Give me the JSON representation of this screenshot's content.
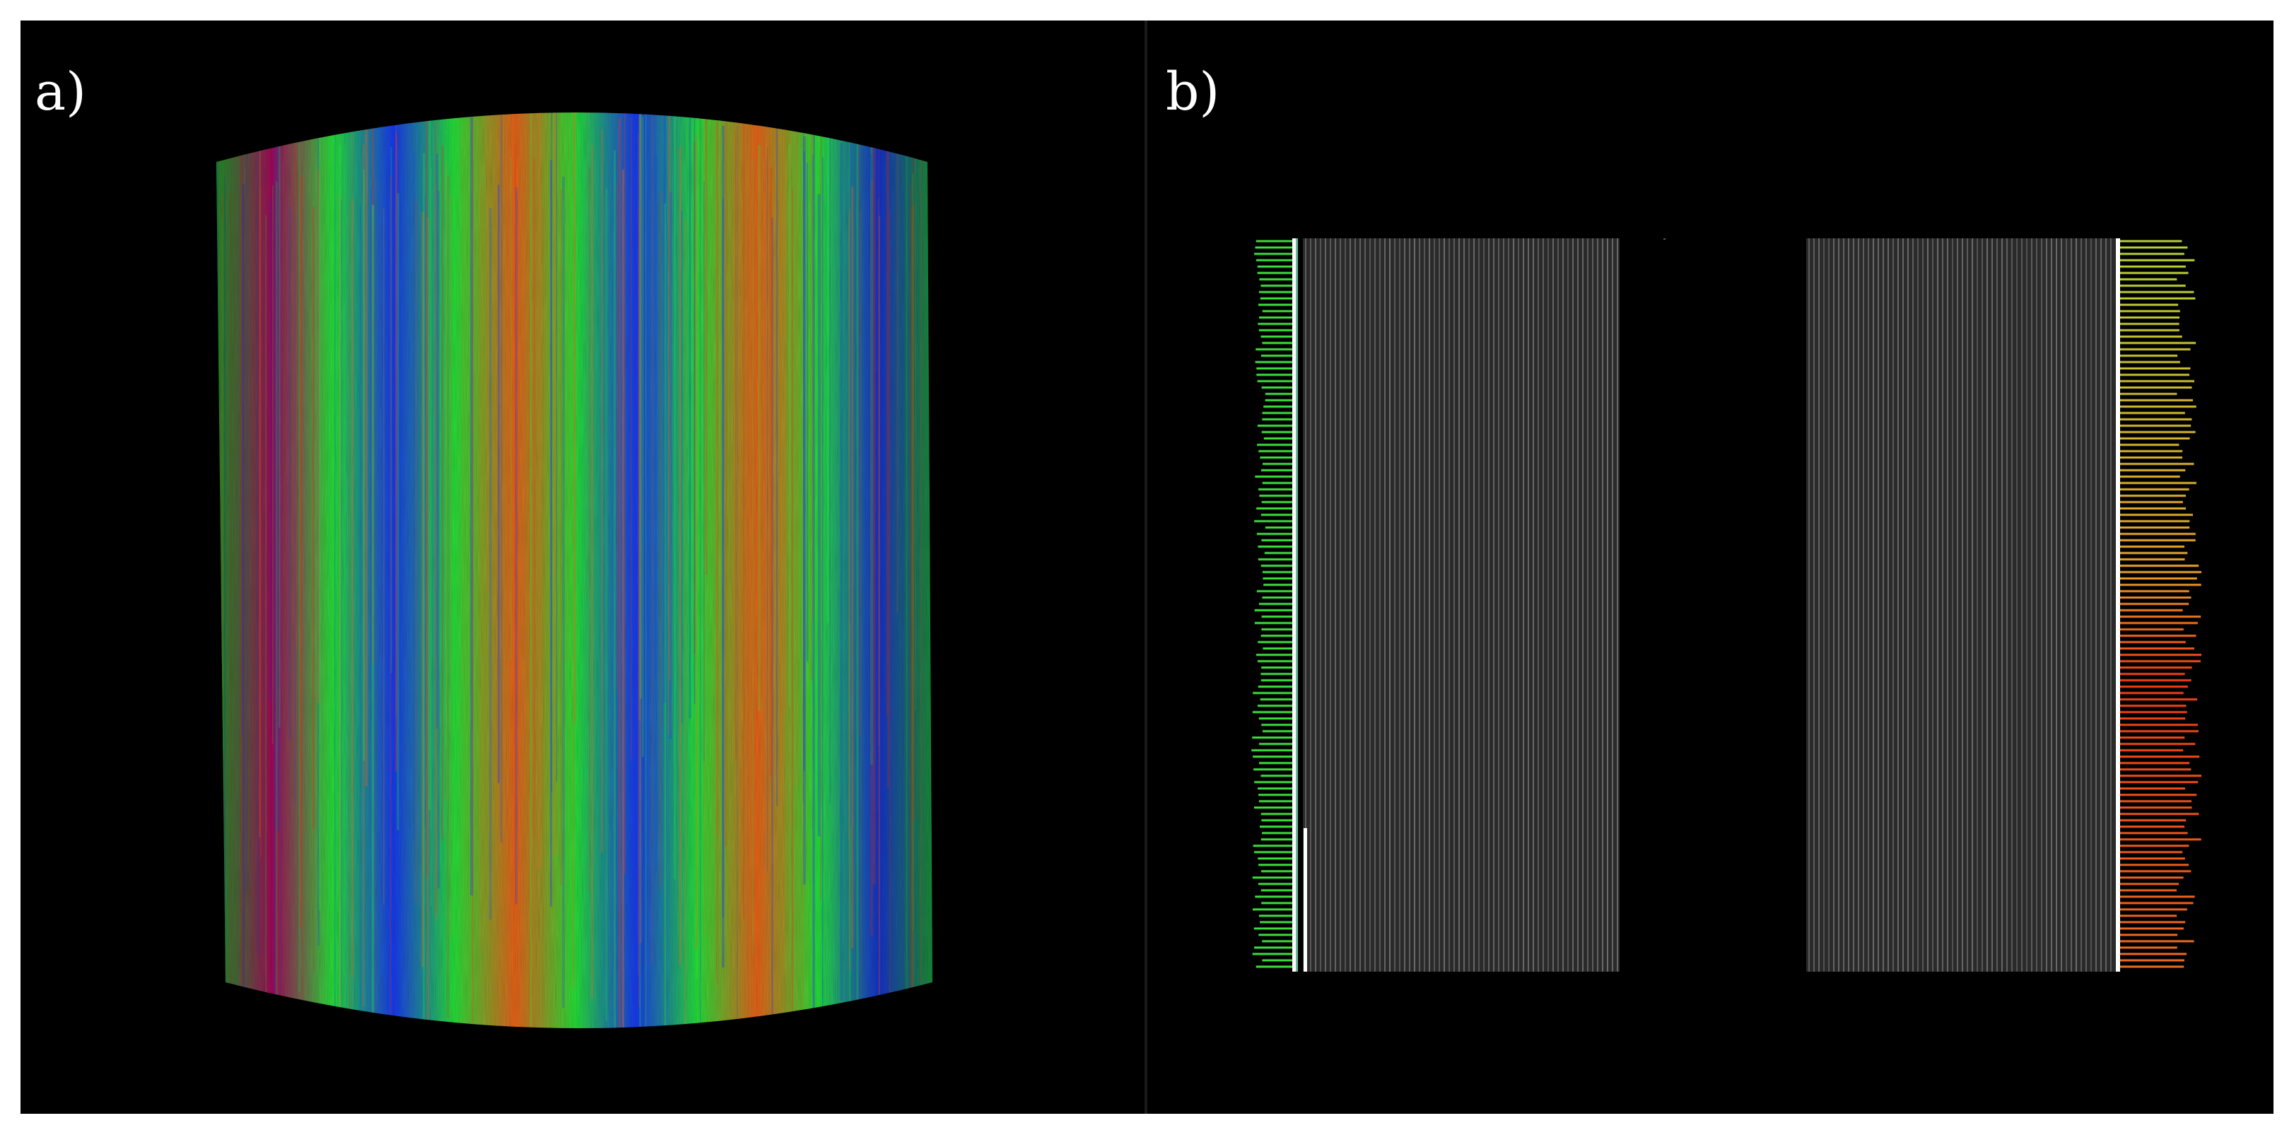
{
  "figure": {
    "panel_a": {
      "label": "a)",
      "colors": {
        "magenta": "#c0106a",
        "blue": "#1e3cf0",
        "green": "#28e03a",
        "orange": "#e8641e",
        "red": "#e8321e"
      },
      "stripe_pattern": [
        "green",
        "magenta",
        "green",
        "blue",
        "green",
        "orange",
        "green",
        "blue",
        "green",
        "orange",
        "green",
        "blue",
        "green"
      ]
    },
    "panel_b": {
      "label": "b)",
      "colors": {
        "left_profile": "#3cdc3c",
        "right_profile_top": "#b4d232",
        "right_profile_mid": "#e6a028",
        "right_profile_bottom": "#f03c14",
        "edge_line": "#ffffff",
        "ct_background": "#2a2a2a",
        "ct_stripe": "#9a9a9a"
      }
    }
  }
}
